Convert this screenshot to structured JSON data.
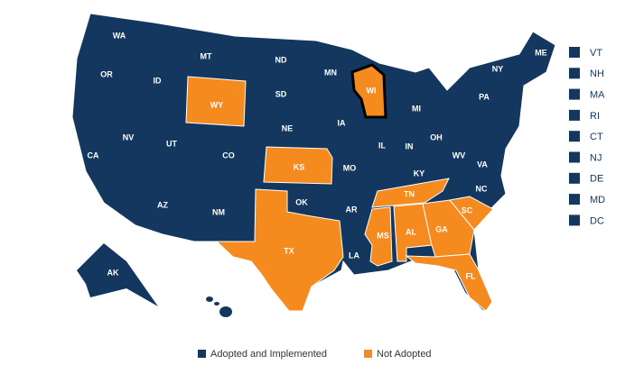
{
  "legend": [
    {
      "label": "Adopted and Implemented",
      "color": "#13375e",
      "states": [
        "WA",
        "OR",
        "CA",
        "NV",
        "ID",
        "MT",
        "UT",
        "CO",
        "AZ",
        "NM",
        "ND",
        "SD",
        "NE",
        "OK",
        "MN",
        "IA",
        "MO",
        "AR",
        "LA",
        "IL",
        "IN",
        "MI",
        "OH",
        "KY",
        "WV",
        "VA",
        "NC",
        "PA",
        "NY",
        "ME",
        "AK",
        "HI"
      ]
    },
    {
      "label": "Not Adopted",
      "color": "#f58a1f",
      "states": [
        "WY",
        "KS",
        "TX",
        "TN",
        "MS",
        "AL",
        "GA",
        "SC",
        "FL",
        "WI"
      ]
    }
  ],
  "sidebar": [
    "VT",
    "NH",
    "MA",
    "RI",
    "CT",
    "NJ",
    "DE",
    "MD",
    "DC"
  ],
  "highlight": "WI"
}
